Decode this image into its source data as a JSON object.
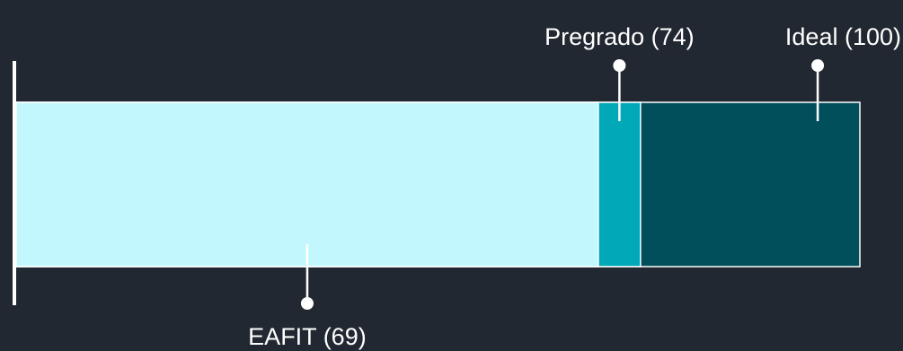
{
  "chart_data": {
    "type": "bar",
    "orientation": "horizontal-stacked-bullet",
    "xlim": [
      0,
      100
    ],
    "segments": [
      {
        "name": "EAFIT",
        "label": "EAFIT (69)",
        "value": 69,
        "color": "#C2F8FD"
      },
      {
        "name": "Pregrado",
        "label": "Pregrado (74)",
        "value": 74,
        "color": "#00A8B8"
      },
      {
        "name": "Ideal",
        "label": "Ideal (100)",
        "value": 100,
        "color": "#004F5B"
      }
    ],
    "markers": [
      {
        "name": "EAFIT",
        "label": "EAFIT (69)",
        "value": 34.5,
        "side": "bottom"
      },
      {
        "name": "Pregrado",
        "label": "Pregrado (74)",
        "value": 71.5,
        "side": "top"
      },
      {
        "name": "Ideal",
        "label": "Ideal (100)",
        "value": 95,
        "side": "top"
      }
    ]
  }
}
